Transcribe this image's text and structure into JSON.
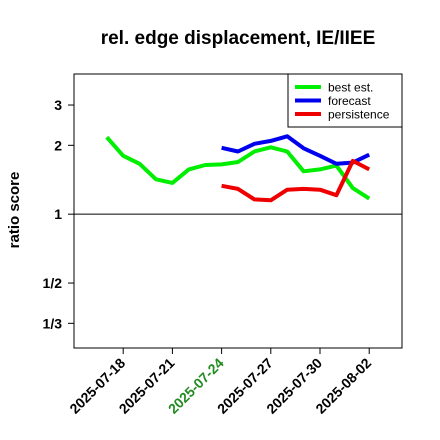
{
  "chart_data": {
    "type": "line",
    "title": "rel. edge displacement, IE/IIEE",
    "ylabel": "ratio score",
    "xlabel": "",
    "yscale": "log",
    "ylim": [
      0.26,
      4.1
    ],
    "reference_line": 1,
    "y_ticks": [
      {
        "value": 3,
        "label": "3"
      },
      {
        "value": 2,
        "label": "2"
      },
      {
        "value": 1,
        "label": "1"
      },
      {
        "value": 0.5,
        "label": "1/2"
      },
      {
        "value": 0.3333,
        "label": "1/3"
      }
    ],
    "x_ticks": [
      {
        "date": "2025-07-18",
        "label": "2025-07-18",
        "color": "#000000"
      },
      {
        "date": "2025-07-21",
        "label": "2025-07-21",
        "color": "#000000"
      },
      {
        "date": "2025-07-24",
        "label": "2025-07-24",
        "color": "#228b22"
      },
      {
        "date": "2025-07-27",
        "label": "2025-07-27",
        "color": "#000000"
      },
      {
        "date": "2025-07-30",
        "label": "2025-07-30",
        "color": "#000000"
      },
      {
        "date": "2025-08-02",
        "label": "2025-08-02",
        "color": "#000000"
      }
    ],
    "xlim": [
      "2025-07-15",
      "2025-08-04"
    ],
    "legend_position": "top-right",
    "grid": false,
    "series": [
      {
        "name": "best est.",
        "color": "#00ee00",
        "x": [
          "2025-07-17",
          "2025-07-18",
          "2025-07-19",
          "2025-07-20",
          "2025-07-21",
          "2025-07-22",
          "2025-07-23",
          "2025-07-24",
          "2025-07-25",
          "2025-07-26",
          "2025-07-27",
          "2025-07-28",
          "2025-07-29",
          "2025-07-30",
          "2025-07-31",
          "2025-08-01",
          "2025-08-02"
        ],
        "y": [
          2.17,
          1.8,
          1.66,
          1.42,
          1.37,
          1.57,
          1.64,
          1.65,
          1.69,
          1.88,
          1.96,
          1.88,
          1.54,
          1.57,
          1.63,
          1.3,
          1.17
        ]
      },
      {
        "name": "forecast",
        "color": "#0000ee",
        "x": [
          "2025-07-24",
          "2025-07-25",
          "2025-07-26",
          "2025-07-27",
          "2025-07-28",
          "2025-07-29",
          "2025-07-30",
          "2025-07-31",
          "2025-08-01",
          "2025-08-02"
        ],
        "y": [
          1.95,
          1.88,
          2.03,
          2.09,
          2.19,
          1.94,
          1.8,
          1.66,
          1.68,
          1.82
        ]
      },
      {
        "name": "persistence",
        "color": "#ee0000",
        "x": [
          "2025-07-24",
          "2025-07-25",
          "2025-07-26",
          "2025-07-27",
          "2025-07-28",
          "2025-07-29",
          "2025-07-30",
          "2025-07-31",
          "2025-08-01",
          "2025-08-02"
        ],
        "y": [
          1.33,
          1.29,
          1.16,
          1.15,
          1.28,
          1.29,
          1.28,
          1.21,
          1.71,
          1.57
        ]
      }
    ]
  }
}
